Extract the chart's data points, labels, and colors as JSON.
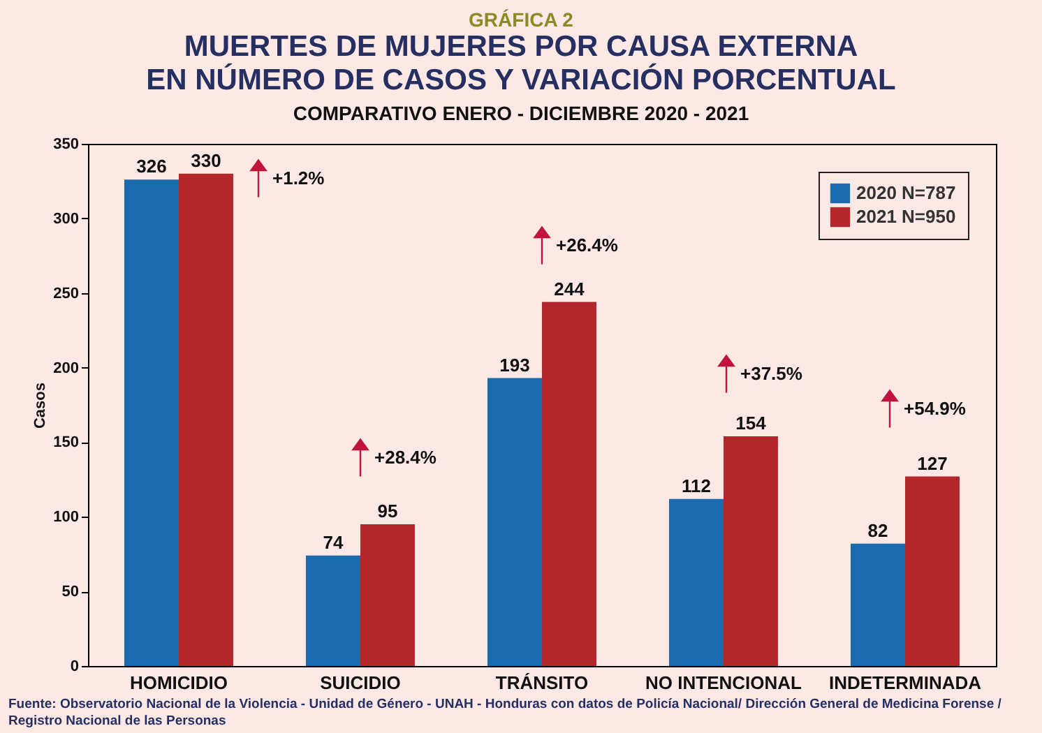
{
  "chart_data": {
    "type": "bar",
    "title": "MUERTES DE MUJERES POR CAUSA EXTERNA\nEN NÚMERO DE CASOS Y VARIACIÓN PORCENTUAL",
    "subtitle": "COMPARATIVO ENERO - DICIEMBRE 2020 - 2021",
    "ylabel": "Casos",
    "categories": [
      "HOMICIDIO",
      "SUICIDIO",
      "TRÁNSITO",
      "NO INTENCIONAL",
      "INDETERMINADA"
    ],
    "series": [
      {
        "name": "2020 N=787",
        "color": "#1a6aae",
        "values": [
          326,
          74,
          193,
          112,
          82
        ]
      },
      {
        "name": "2021 N=950",
        "color": "#b3262c",
        "values": [
          330,
          95,
          244,
          154,
          127
        ]
      }
    ],
    "ylim": [
      0,
      350
    ],
    "yticks": [
      0,
      50,
      100,
      150,
      200,
      250,
      300,
      350
    ],
    "grid": false,
    "legend": "top right",
    "data_labels": true,
    "annotations": [
      "GRÁFICA 2",
      "+1.2%",
      "+28.4%",
      "+26.4%",
      "+37.5%",
      "+54.9%",
      "Fuente: Observatorio Nacional de la Violencia - Unidad de Género - UNAH - Honduras con datos de Policía Nacional/ Dirección General de Medicina Forense /",
      "Registro Nacional de las Personas"
    ]
  }
}
